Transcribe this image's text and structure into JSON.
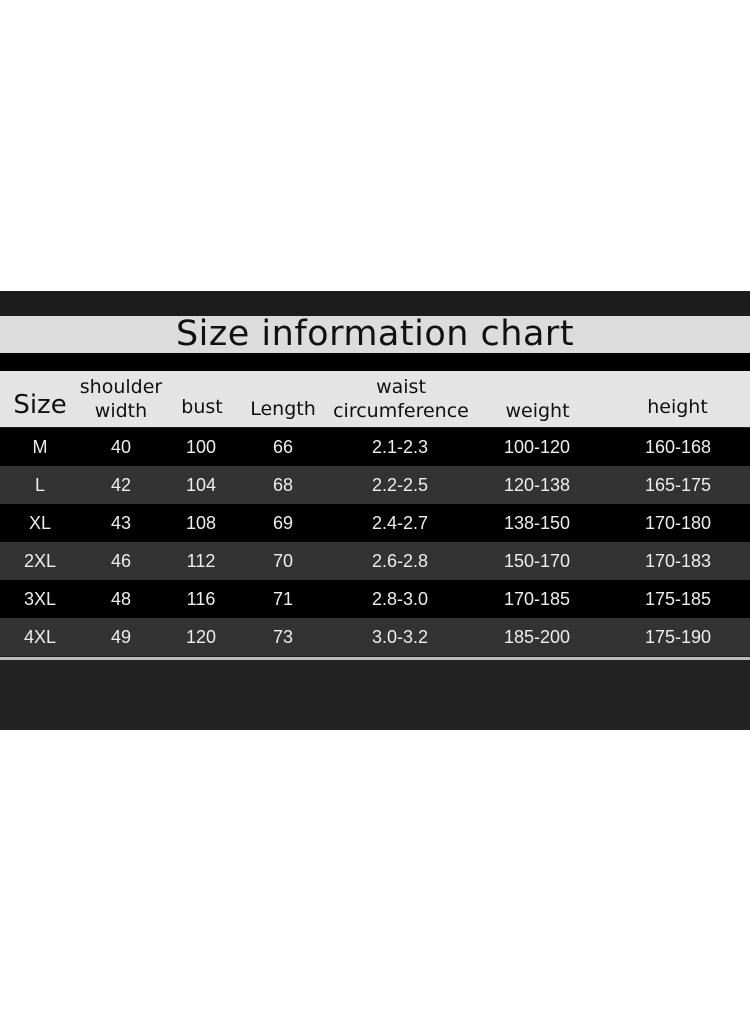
{
  "title": "Size information chart",
  "headers": [
    "Size",
    "shoulder width",
    "bust",
    "Length",
    "waist circumference",
    "weight",
    "height"
  ],
  "rows": [
    [
      "M",
      "40",
      "100",
      "66",
      "2.1-2.3",
      "100-120",
      "160-168"
    ],
    [
      "L",
      "42",
      "104",
      "68",
      "2.2-2.5",
      "120-138",
      "165-175"
    ],
    [
      "XL",
      "43",
      "108",
      "69",
      "2.4-2.7",
      "138-150",
      "170-180"
    ],
    [
      "2XL",
      "46",
      "112",
      "70",
      "2.6-2.8",
      "150-170",
      "170-183"
    ],
    [
      "3XL",
      "48",
      "116",
      "71",
      "2.8-3.0",
      "170-185",
      "175-185"
    ],
    [
      "4XL",
      "49",
      "120",
      "73",
      "3.0-3.2",
      "185-200",
      "175-190"
    ]
  ]
}
